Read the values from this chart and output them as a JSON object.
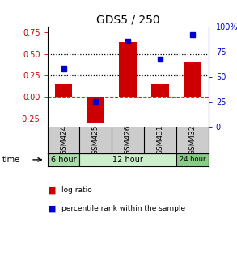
{
  "title": "GDS5 / 250",
  "samples": [
    "GSM424",
    "GSM425",
    "GSM426",
    "GSM431",
    "GSM432"
  ],
  "log_ratio": [
    0.155,
    -0.295,
    0.635,
    0.155,
    0.4
  ],
  "percentile_rank": [
    58,
    25,
    85,
    68,
    92
  ],
  "bar_color": "#cc0000",
  "dot_color": "#0000cc",
  "left_ylim": [
    -0.35,
    0.82
  ],
  "right_ylim": [
    0,
    100
  ],
  "left_yticks": [
    -0.25,
    0.0,
    0.25,
    0.5,
    0.75
  ],
  "right_yticks": [
    0,
    25,
    50,
    75,
    100
  ],
  "right_yticklabels": [
    "0",
    "25",
    "50",
    "75",
    "100%"
  ],
  "dotted_lines": [
    0.25,
    0.5
  ],
  "zero_line": 0.0,
  "time_groups": [
    {
      "label": "6 hour",
      "indices": [
        0
      ],
      "color": "#aaddaa"
    },
    {
      "label": "12 hour",
      "indices": [
        1,
        2,
        3
      ],
      "color": "#cceecc"
    },
    {
      "label": "24 hour",
      "indices": [
        4
      ],
      "color": "#88cc88"
    }
  ],
  "sample_box_color": "#cccccc",
  "legend_logratio_label": "log ratio",
  "legend_percentile_label": "percentile rank within the sample",
  "time_label": "time",
  "bar_width": 0.55
}
